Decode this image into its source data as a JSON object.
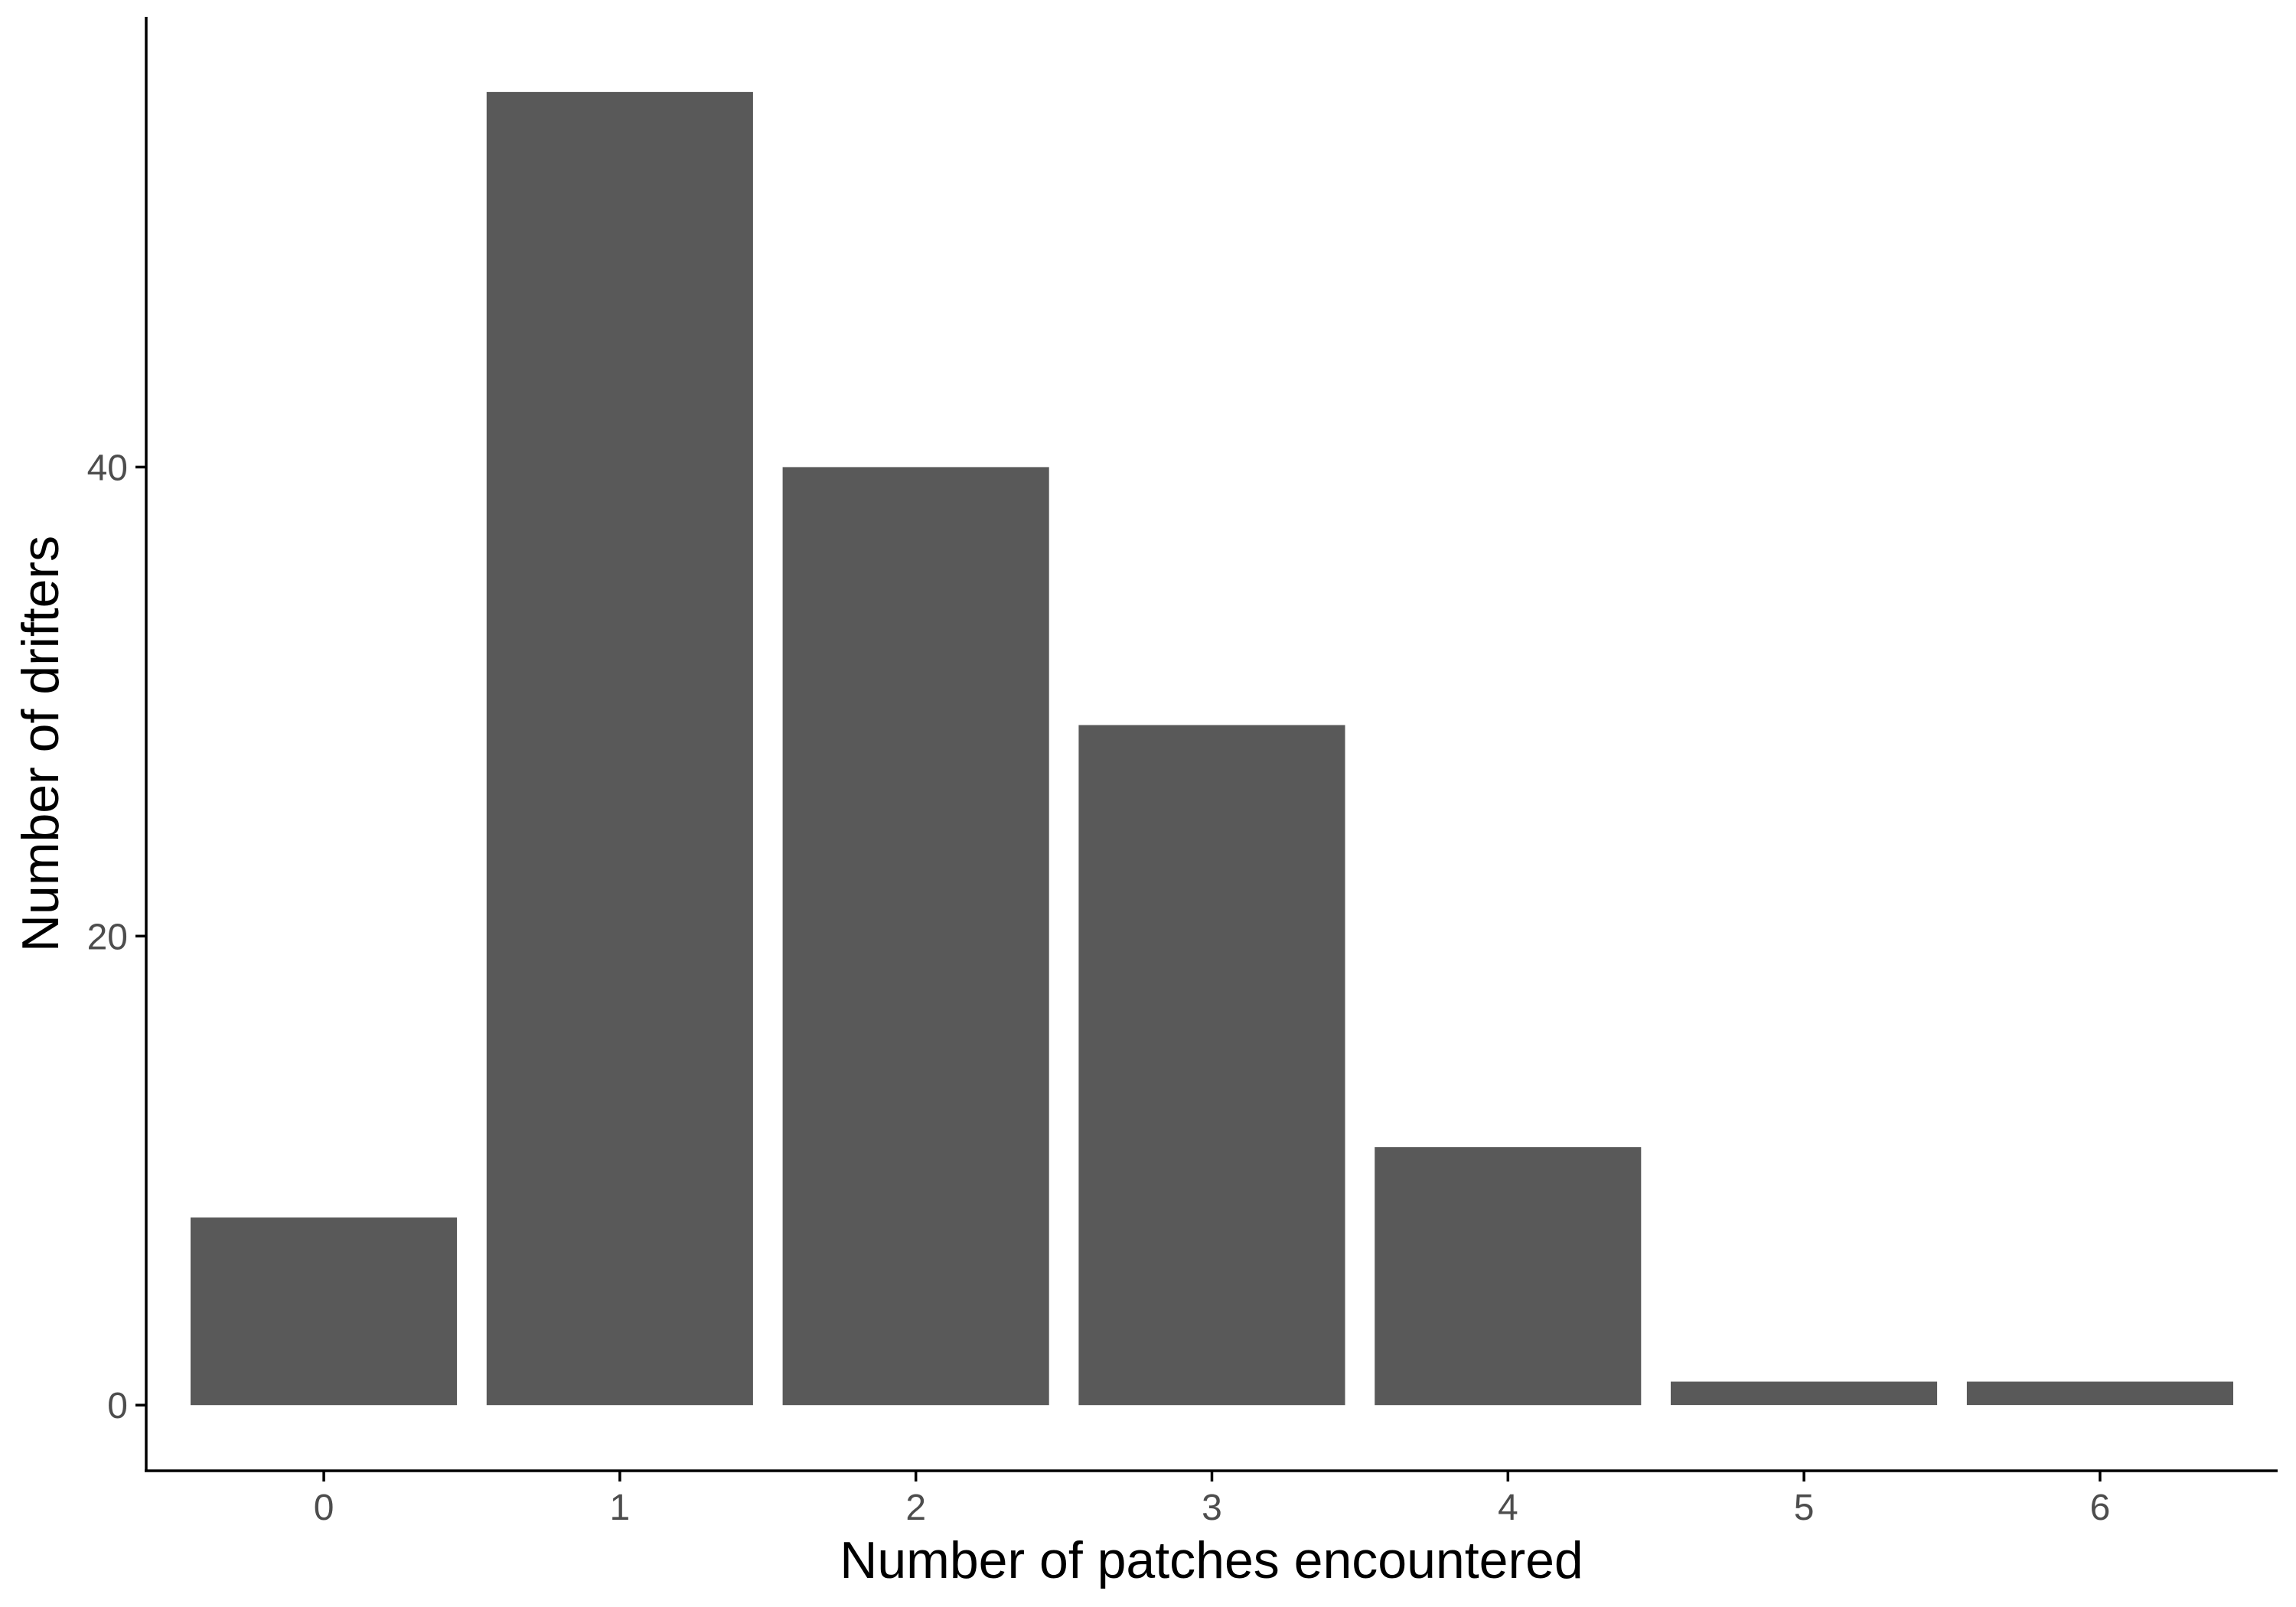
{
  "chart_data": {
    "type": "bar",
    "categories": [
      "0",
      "1",
      "2",
      "3",
      "4",
      "5",
      "6"
    ],
    "values": [
      8,
      56,
      40,
      29,
      11,
      1,
      1
    ],
    "title": "",
    "xlabel": "Number of patches encountered",
    "ylabel": "Number of drifters",
    "ylim": [
      -2.8,
      59.2
    ],
    "yticks": [
      "0",
      "20",
      "40"
    ],
    "grid": false,
    "legend": "none",
    "bar_color": "#595959"
  }
}
